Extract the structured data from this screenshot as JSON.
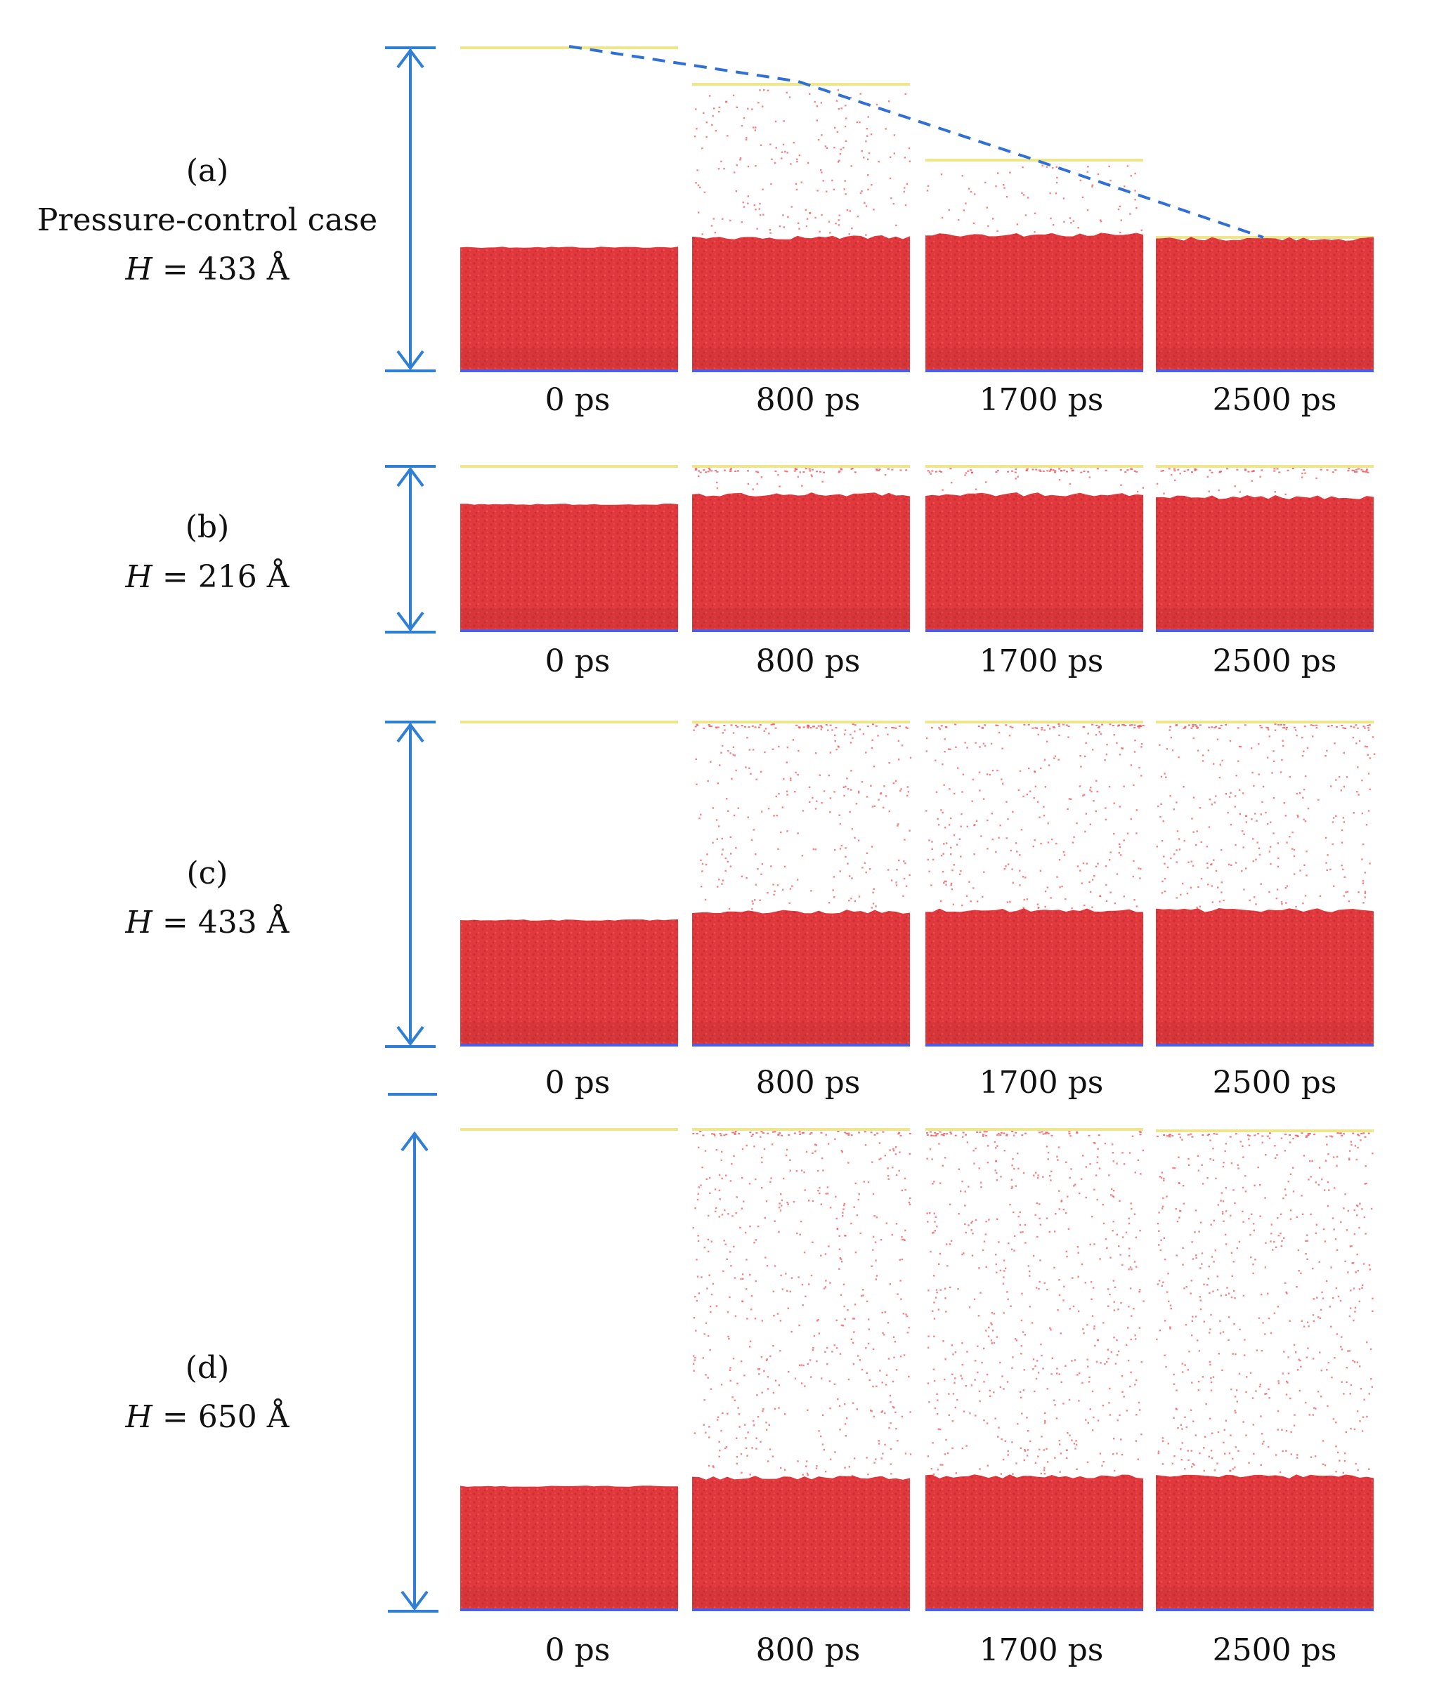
{
  "colors": {
    "liquid": "#e0383c",
    "liquid_dark": "#b82a2e",
    "wall_top": "#ede68a",
    "wall_bottom": "#4a5ee8",
    "arrow": "#2f7fd6",
    "dashed_line": "#2f6fd6",
    "vapor": "#ef5a5e"
  },
  "time_labels": [
    "0 ps",
    "800 ps",
    "1700 ps",
    "2500 ps"
  ],
  "rows": [
    {
      "id": "a",
      "label": "(a)",
      "sublabel": "Pressure-control case",
      "h_prefix": "H",
      "h_value": " = 433 Å",
      "wall_note": "piston wall descends over time",
      "vapor_density": [
        0,
        0.55,
        0.45,
        0
      ]
    },
    {
      "id": "b",
      "label": "(b)",
      "sublabel": "",
      "h_prefix": "H",
      "h_value": " = 216 Å",
      "vapor_density": [
        0,
        0.3,
        0.3,
        0.3
      ]
    },
    {
      "id": "c",
      "label": "(c)",
      "sublabel": "",
      "h_prefix": "H",
      "h_value": " = 433 Å",
      "vapor_density": [
        0,
        0.55,
        0.6,
        0.6
      ]
    },
    {
      "id": "d",
      "label": "(d)",
      "sublabel": "",
      "h_prefix": "H",
      "h_value": " = 650 Å",
      "vapor_density": [
        0,
        0.6,
        0.65,
        0.65
      ]
    }
  ]
}
